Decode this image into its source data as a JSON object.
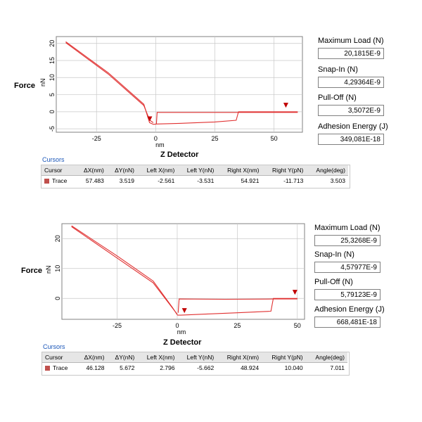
{
  "panels": [
    {
      "y_label": "Force",
      "y_unit": "nN",
      "x_unit": "nm",
      "x_title": "Z Detector",
      "readouts": [
        {
          "label": "Maximum Load (N)",
          "value": "20,1815E-9"
        },
        {
          "label": "Snap-In (N)",
          "value": "4,29364E-9"
        },
        {
          "label": "Pull-Off (N)",
          "value": "3,5072E-9"
        },
        {
          "label": "Adhesion Energy (J)",
          "value": "349,081E-18"
        }
      ],
      "cursors_title": "Cursors",
      "table": {
        "headers": [
          "Cursor",
          "ΔX(nm)",
          "ΔY(nN)",
          "Left X(nm)",
          "Left Y(nN)",
          "Right X(nm)",
          "Right Y(pN)",
          "Angle(deg)"
        ],
        "row": [
          "Trace",
          "57.483",
          "3.519",
          "-2.561",
          "-3.531",
          "54.921",
          "-11.713",
          "3.503"
        ]
      },
      "chart_data": {
        "type": "line",
        "xlabel": "Z Detector",
        "ylabel": "Force",
        "xlim": [
          -42,
          62
        ],
        "ylim": [
          -6,
          22
        ],
        "xticks": [
          -25,
          0,
          25,
          50
        ],
        "yticks": [
          -5,
          0,
          5,
          10,
          15,
          20
        ],
        "grid": true,
        "series": [
          {
            "x": [
              -38,
              -20,
              -5,
              -2.5,
              -1
            ],
            "y": [
              20.2,
              11,
              1.8,
              -2.5,
              -3.2
            ]
          },
          {
            "x": [
              -38,
              -20,
              -5,
              -2.6,
              -1
            ],
            "y": [
              20.5,
              11.4,
              2.2,
              -3.2,
              -3.7
            ]
          },
          {
            "x": [
              -1,
              0.3,
              10,
              25,
              34,
              35,
              60
            ],
            "y": [
              -3.7,
              -3.6,
              -3.4,
              -3.0,
              -2.5,
              0,
              0
            ]
          },
          {
            "x": [
              0.3,
              0.6,
              20,
              35,
              60
            ],
            "y": [
              -3.5,
              -0.2,
              -0.2,
              -0.2,
              -0.2
            ]
          }
        ],
        "markers": [
          {
            "x": -2.5,
            "y": -2.2
          },
          {
            "x": 55,
            "y": 1.8
          }
        ]
      }
    },
    {
      "y_label": "Force",
      "y_unit": "nN",
      "x_unit": "nm",
      "x_title": "Z Detector",
      "readouts": [
        {
          "label": "Maximum Load (N)",
          "value": "25,3268E-9"
        },
        {
          "label": "Snap-In (N)",
          "value": "4,57977E-9"
        },
        {
          "label": "Pull-Off (N)",
          "value": "5,79123E-9"
        },
        {
          "label": "Adhesion Energy (J)",
          "value": "668,481E-18"
        }
      ],
      "cursors_title": "Cursors",
      "table": {
        "headers": [
          "Cursor",
          "ΔX(nm)",
          "ΔY(nN)",
          "Left X(nm)",
          "Left Y(nN)",
          "Right X(nm)",
          "Right Y(pN)",
          "Angle(deg)"
        ],
        "row": [
          "Trace",
          "46.128",
          "5.672",
          "2.796",
          "-5.662",
          "48.924",
          "10.040",
          "7.011"
        ]
      },
      "chart_data": {
        "type": "line",
        "xlabel": "Z Detector",
        "ylabel": "Force",
        "xlim": [
          -48,
          53
        ],
        "ylim": [
          -7,
          25
        ],
        "xticks": [
          -25,
          0,
          25,
          50
        ],
        "yticks": [
          0,
          10,
          20
        ],
        "grid": true,
        "series": [
          {
            "x": [
              -44,
              -25,
              -10,
              -2,
              0
            ],
            "y": [
              24,
              13.5,
              5.2,
              -3.2,
              -5.3
            ]
          },
          {
            "x": [
              -44,
              -25,
              -10,
              -2,
              0
            ],
            "y": [
              24.3,
              14.2,
              5.8,
              -3.0,
              -5.5
            ]
          },
          {
            "x": [
              0,
              1.5,
              10,
              25,
              39,
              40,
              50
            ],
            "y": [
              -5.6,
              -5.6,
              -5.3,
              -4.8,
              -4.3,
              0,
              0
            ]
          },
          {
            "x": [
              0.4,
              0.8,
              20,
              40,
              50
            ],
            "y": [
              -4.8,
              -0.2,
              -0.3,
              -0.2,
              -0.2
            ]
          }
        ],
        "markers": [
          {
            "x": 3,
            "y": -4.2
          },
          {
            "x": 49,
            "y": 1.9
          }
        ]
      }
    }
  ],
  "colors": {
    "trace": "#e03030",
    "grid": "#c8c8c8",
    "frame": "#808080",
    "link": "#1a56b8"
  }
}
